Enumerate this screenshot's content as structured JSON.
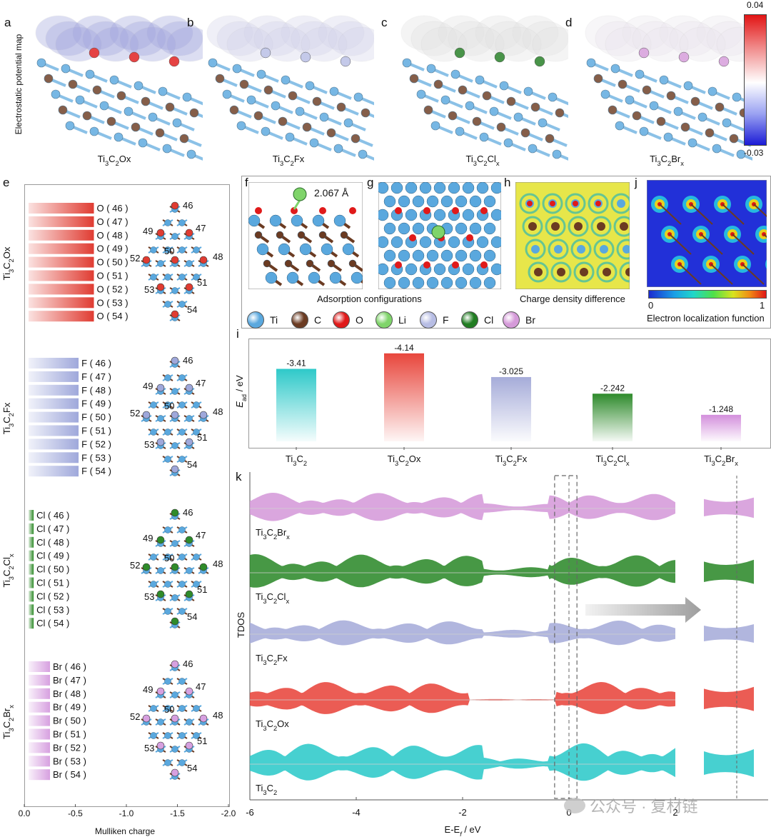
{
  "panels_top": [
    {
      "letter": "a",
      "label_base": "Ti",
      "label_parts": [
        "3",
        "C",
        "2",
        "O",
        "x"
      ],
      "halogen_color": "#e01a1a",
      "bg_tint": "#8a8fd6"
    },
    {
      "letter": "b",
      "label_base": "Ti",
      "label_parts": [
        "3",
        "C",
        "2",
        "F",
        "x"
      ],
      "halogen_color": "#b7bde4",
      "bg_tint": "#c9c9e6"
    },
    {
      "letter": "c",
      "label_base": "Ti",
      "label_parts": [
        "3",
        "C",
        "2",
        "Cl",
        "x"
      ],
      "halogen_color": "#217d22",
      "bg_tint": "#dcdcdc"
    },
    {
      "letter": "d",
      "label_base": "Ti",
      "label_parts": [
        "3",
        "C",
        "2",
        "Br",
        "x"
      ],
      "halogen_color": "#d59ad9",
      "bg_tint": "#e6e0ea"
    }
  ],
  "esp": {
    "ylabel": "Electrostatic potential map",
    "max": "0.04",
    "min": "-0.03"
  },
  "panel_e": {
    "letter": "e",
    "xlabel": "Mulliken charge",
    "xticks": [
      "0.0",
      "-0.5",
      "-1.0",
      "-1.5",
      "-2.0"
    ],
    "groups": [
      {
        "name": "Ti3C2Ox",
        "elem": "O",
        "color": "#e03c32",
        "charge": -0.64,
        "sites": [
          "46",
          "47",
          "48",
          "49",
          "50",
          "51",
          "52",
          "53",
          "54"
        ]
      },
      {
        "name": "Ti3C2Fx",
        "elem": "F",
        "color": "#9fa8db",
        "charge": -0.49,
        "sites": [
          "46",
          "47",
          "48",
          "49",
          "50",
          "51",
          "52",
          "53",
          "54"
        ]
      },
      {
        "name": "Ti3C2Clx",
        "elem": "Cl",
        "color": "#2f8b2a",
        "charge": -0.05,
        "sites": [
          "46",
          "47",
          "48",
          "49",
          "50",
          "51",
          "52",
          "53",
          "54"
        ]
      },
      {
        "name": "Ti3C2Brx",
        "elem": "Br",
        "color": "#d7a0e0",
        "charge": -0.21,
        "sites": [
          "46",
          "47",
          "48",
          "49",
          "50",
          "51",
          "52",
          "53",
          "54"
        ]
      }
    ],
    "site_labels": [
      "46",
      "47",
      "48",
      "49",
      "50",
      "51",
      "52",
      "53",
      "54"
    ]
  },
  "panel_f": {
    "letter": "f",
    "distance": "2.067 Å"
  },
  "panel_g": {
    "letter": "g"
  },
  "panel_h": {
    "letter": "h"
  },
  "panel_j": {
    "letter": "j",
    "colorbar_min": "0",
    "colorbar_max": "1",
    "caption": "Electron localization function"
  },
  "caption_fg": "Adsorption configurations",
  "caption_h": "Charge density difference",
  "legend": [
    {
      "label": "Ti",
      "color": "#5aa8de"
    },
    {
      "label": "C",
      "color": "#6b3b22"
    },
    {
      "label": "O",
      "color": "#e01a1a"
    },
    {
      "label": "Li",
      "color": "#7fd46a"
    },
    {
      "label": "F",
      "color": "#b7bde4"
    },
    {
      "label": "Cl",
      "color": "#217d22"
    },
    {
      "label": "Br",
      "color": "#d59ad9"
    }
  ],
  "chart_data": [
    {
      "type": "bar",
      "panel": "i",
      "ylabel": "E_ad / eV",
      "categories": [
        "Ti3C2",
        "Ti3C2Ox",
        "Ti3C2Fx",
        "Ti3C2Clx",
        "Ti3C2Brx"
      ],
      "values": [
        -3.41,
        -4.14,
        -3.025,
        -2.242,
        -1.248
      ],
      "value_labels": [
        "-3.41",
        "-4.14",
        "-3.025",
        "-2.242",
        "-1.248"
      ],
      "colors": [
        "#2ec9c9",
        "#e8463c",
        "#a6acd9",
        "#2e8a2b",
        "#d38fdc"
      ],
      "ylim": [
        0,
        -4.3
      ]
    },
    {
      "type": "area",
      "panel": "k",
      "ylabel": "TDOS",
      "xlabel": "E-E_f / eV",
      "xlim": [
        -6,
        2
      ],
      "xticks": [
        "-6",
        "-4",
        "-2",
        "0",
        "2"
      ],
      "series": [
        {
          "name": "Ti3C2Brx",
          "color": "#d59ad9"
        },
        {
          "name": "Ti3C2Clx",
          "color": "#2e8a2b"
        },
        {
          "name": "Ti3C2Fx",
          "color": "#a6acd9"
        },
        {
          "name": "Ti3C2Ox",
          "color": "#e8463c"
        },
        {
          "name": "Ti3C2",
          "color": "#2ec9c9"
        }
      ]
    }
  ],
  "watermark": "公众号 · 复材链"
}
